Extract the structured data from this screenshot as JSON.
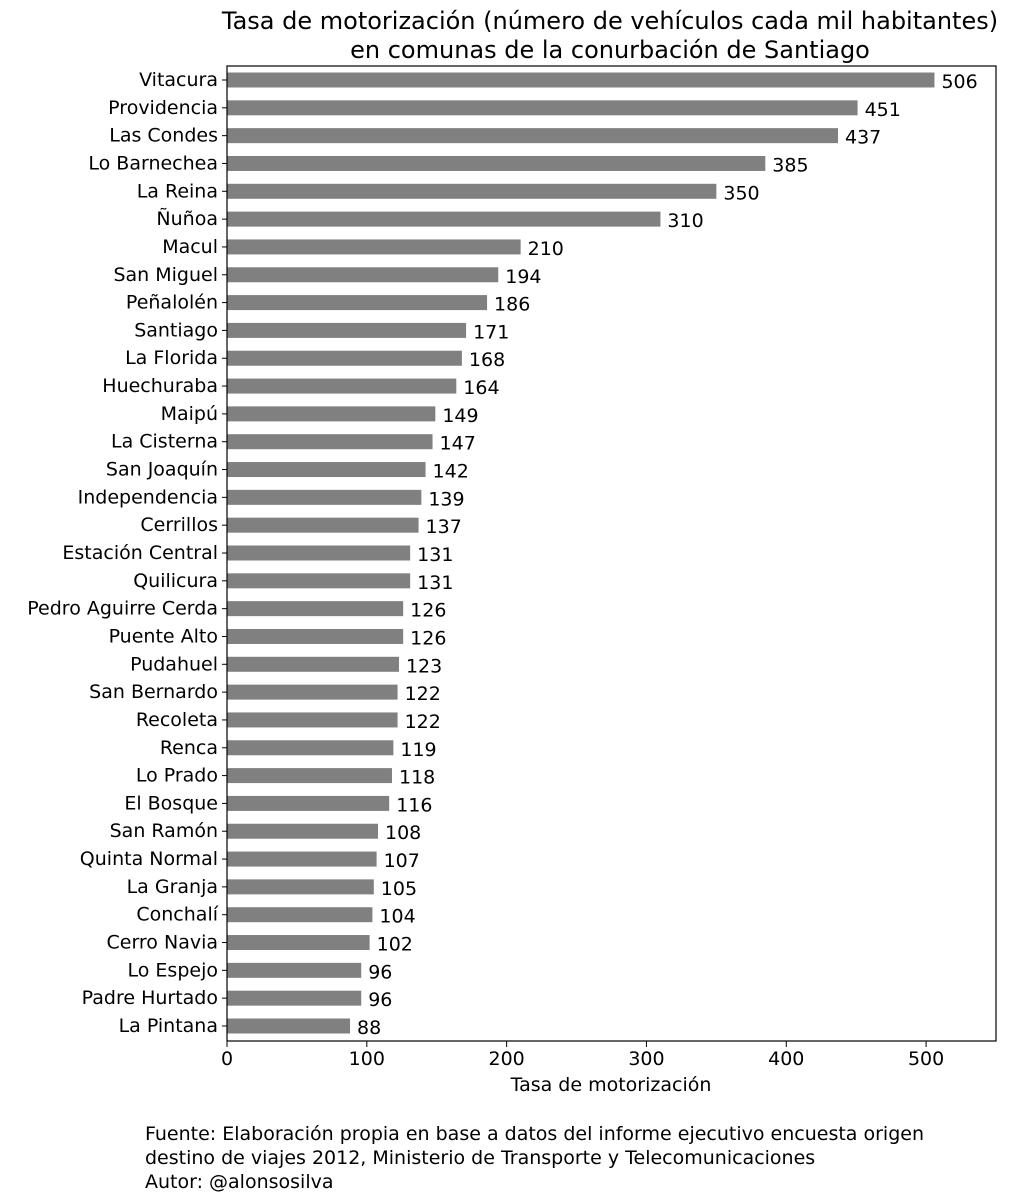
{
  "chart_data": {
    "type": "bar",
    "orientation": "horizontal",
    "title_lines": [
      "Tasa de motorización (número de vehículos cada mil habitantes)",
      "en comunas de la conurbación de Santiago"
    ],
    "xlabel": "Tasa de motorización",
    "ylabel": "",
    "xlim": [
      0,
      550
    ],
    "xticks": [
      0,
      100,
      200,
      300,
      400,
      500
    ],
    "grid": false,
    "bar_color": "#808080",
    "categories": [
      "Vitacura",
      "Providencia",
      "Las Condes",
      "Lo Barnechea",
      "La Reina",
      "Ñuñoa",
      "Macul",
      "San Miguel",
      "Peñalolén",
      "Santiago",
      "La Florida",
      "Huechuraba",
      "Maipú",
      "La Cisterna",
      "San Joaquín",
      "Independencia",
      "Cerrillos",
      "Estación Central",
      "Quilicura",
      "Pedro Aguirre Cerda",
      "Puente Alto",
      "Pudahuel",
      "San Bernardo",
      "Recoleta",
      "Renca",
      "Lo Prado",
      "El Bosque",
      "San Ramón",
      "Quinta Normal",
      "La Granja",
      "Conchalí",
      "Cerro Navia",
      "Lo Espejo",
      "Padre Hurtado",
      "La Pintana"
    ],
    "values": [
      506,
      451,
      437,
      385,
      350,
      310,
      210,
      194,
      186,
      171,
      168,
      164,
      149,
      147,
      142,
      139,
      137,
      131,
      131,
      126,
      126,
      123,
      122,
      122,
      119,
      118,
      116,
      108,
      107,
      105,
      104,
      102,
      96,
      96,
      88
    ]
  },
  "footer": {
    "line1": "Fuente: Elaboración propia en base a datos del informe ejecutivo encuesta origen",
    "line2": "destino de viajes 2012, Ministerio de Transporte y Telecomunicaciones",
    "line3": "Autor: @alonsosilva"
  }
}
